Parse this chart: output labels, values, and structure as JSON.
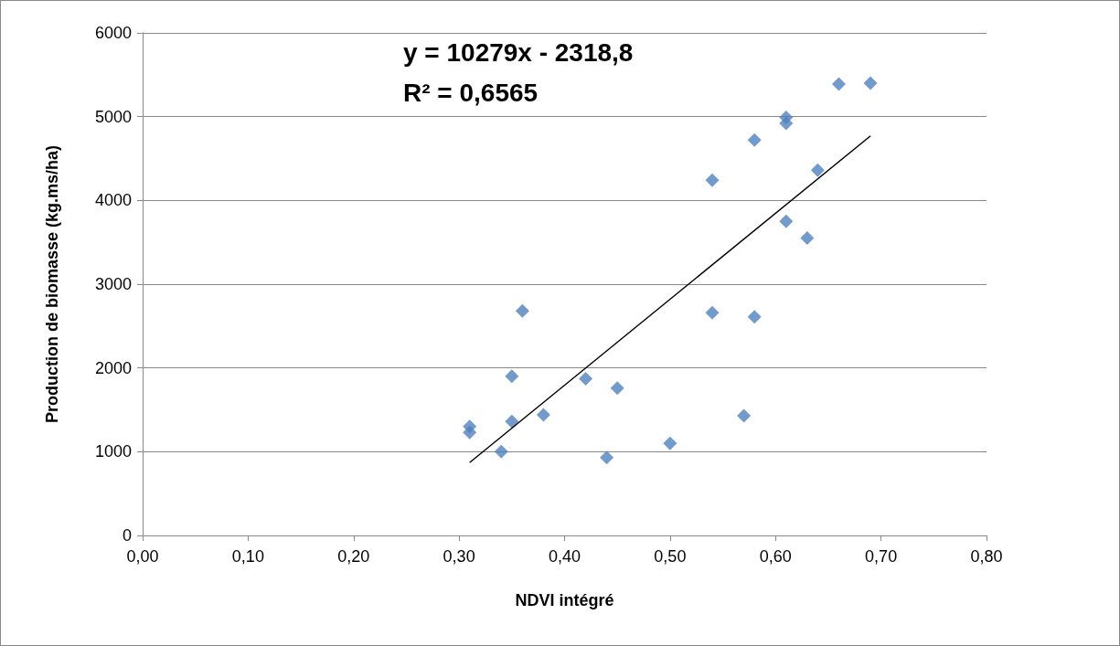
{
  "chart_data": {
    "type": "scatter",
    "xlabel": "NDVI intégré",
    "ylabel": "Production de biomasse (kg.ms/ha)",
    "annotations": [
      "y = 10279x - 2318,8",
      "R² = 0,6565"
    ],
    "xlim": [
      0,
      0.8
    ],
    "xticks": [
      {
        "value": 0,
        "label": "0,00"
      },
      {
        "value": 0.1,
        "label": "0,10"
      },
      {
        "value": 0.2,
        "label": "0,20"
      },
      {
        "value": 0.3,
        "label": "0,30"
      },
      {
        "value": 0.4,
        "label": "0,40"
      },
      {
        "value": 0.5,
        "label": "0,50"
      },
      {
        "value": 0.6,
        "label": "0,60"
      },
      {
        "value": 0.7,
        "label": "0,70"
      },
      {
        "value": 0.8,
        "label": "0,80"
      }
    ],
    "ylim": [
      0,
      6000
    ],
    "yticks": [
      0,
      1000,
      2000,
      3000,
      4000,
      5000,
      6000
    ],
    "grid": "y",
    "series": [
      {
        "color": "#4f81bd",
        "marker": "diamond",
        "x": [
          0.31,
          0.31,
          0.34,
          0.35,
          0.35,
          0.36,
          0.38,
          0.42,
          0.44,
          0.45,
          0.5,
          0.54,
          0.54,
          0.57,
          0.58,
          0.58,
          0.61,
          0.61,
          0.61,
          0.63,
          0.64,
          0.66,
          0.69
        ],
        "values": [
          1300,
          1230,
          1000,
          1900,
          1360,
          2680,
          1440,
          1870,
          930,
          1760,
          1100,
          4240,
          2660,
          1430,
          4720,
          2610,
          4990,
          4920,
          3750,
          3550,
          4360,
          5390,
          5400
        ]
      },
      {
        "type": "line",
        "color": "#000000",
        "marker": "none",
        "line_style": "solid",
        "x": [
          0.31,
          0.69
        ],
        "values": [
          870,
          4770
        ]
      }
    ]
  }
}
